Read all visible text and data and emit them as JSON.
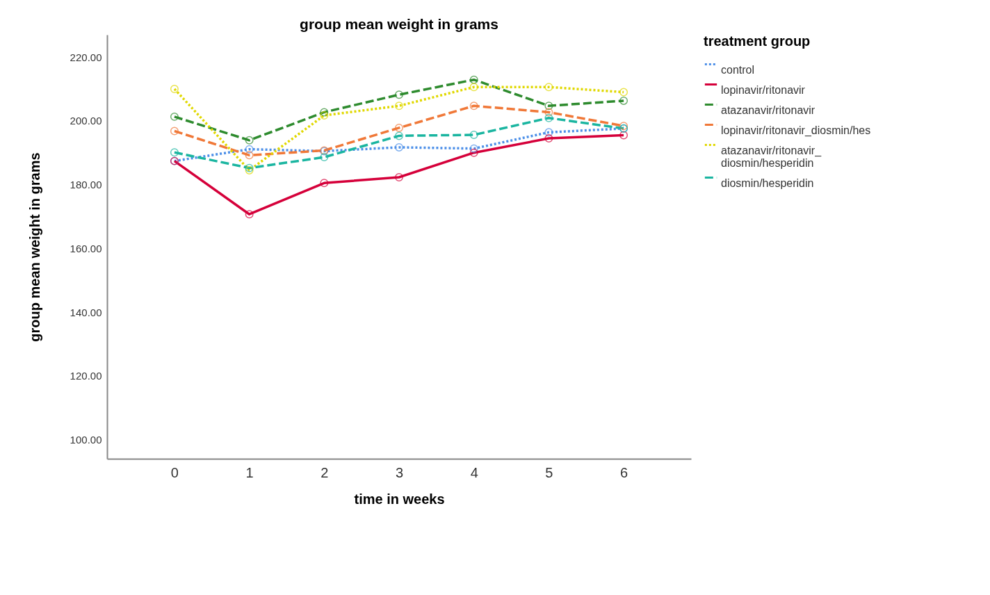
{
  "chart_data": {
    "type": "line",
    "title": "group mean weight in grams",
    "xlabel": "time in weeks",
    "ylabel": "group mean weight in grams",
    "legend_title": "treatment group",
    "legend": "top right",
    "grid": false,
    "marker": "circle",
    "x": [
      0,
      1,
      2,
      3,
      4,
      5,
      6
    ],
    "xlim": [
      -0.9,
      6.9
    ],
    "xticks": [
      0,
      1,
      2,
      3,
      4,
      5,
      6
    ],
    "ylim": [
      94,
      227
    ],
    "yticks": [
      {
        "value": 100,
        "label": "100.00"
      },
      {
        "value": 120,
        "label": "120.00"
      },
      {
        "value": 140,
        "label": "140.00"
      },
      {
        "value": 160,
        "label": "160.00"
      },
      {
        "value": 180,
        "label": "180.00"
      },
      {
        "value": 200,
        "label": "200.00"
      },
      {
        "value": 220,
        "label": "220.00"
      }
    ],
    "series": [
      {
        "name": "control",
        "color": "#4c8fe8",
        "line_style": "dotted",
        "values": [
          187.4,
          191.1,
          190.5,
          191.7,
          191.3,
          196.4,
          197.6
        ]
      },
      {
        "name": "lopinavir/ritonavir",
        "color": "#d5003a",
        "line_style": "solid",
        "values": [
          187.4,
          170.7,
          180.5,
          182.3,
          190.0,
          194.5,
          195.5
        ]
      },
      {
        "name": "atazanavir/ritonavir",
        "color": "#2e8b2e",
        "line_style": "dashed",
        "values": [
          201.3,
          193.9,
          202.7,
          208.2,
          212.9,
          204.7,
          206.3
        ]
      },
      {
        "name": "lopinavir/ritonavir_diosmin/hes",
        "color": "#f07838",
        "line_style": "dashed",
        "values": [
          196.8,
          189.2,
          190.7,
          197.8,
          204.7,
          202.7,
          198.4
        ]
      },
      {
        "name": "atazanavir/ritonavir_\ndiosmin/hesperidin",
        "color": "#e0d800",
        "line_style": "dotted",
        "values": [
          210.0,
          184.5,
          201.7,
          204.7,
          210.6,
          210.6,
          209.0
        ]
      },
      {
        "name": "diosmin/hesperidin",
        "color": "#1ab5a0",
        "line_style": "dashed",
        "values": [
          190.1,
          185.2,
          188.6,
          195.3,
          195.6,
          200.9,
          197.6
        ]
      }
    ]
  }
}
